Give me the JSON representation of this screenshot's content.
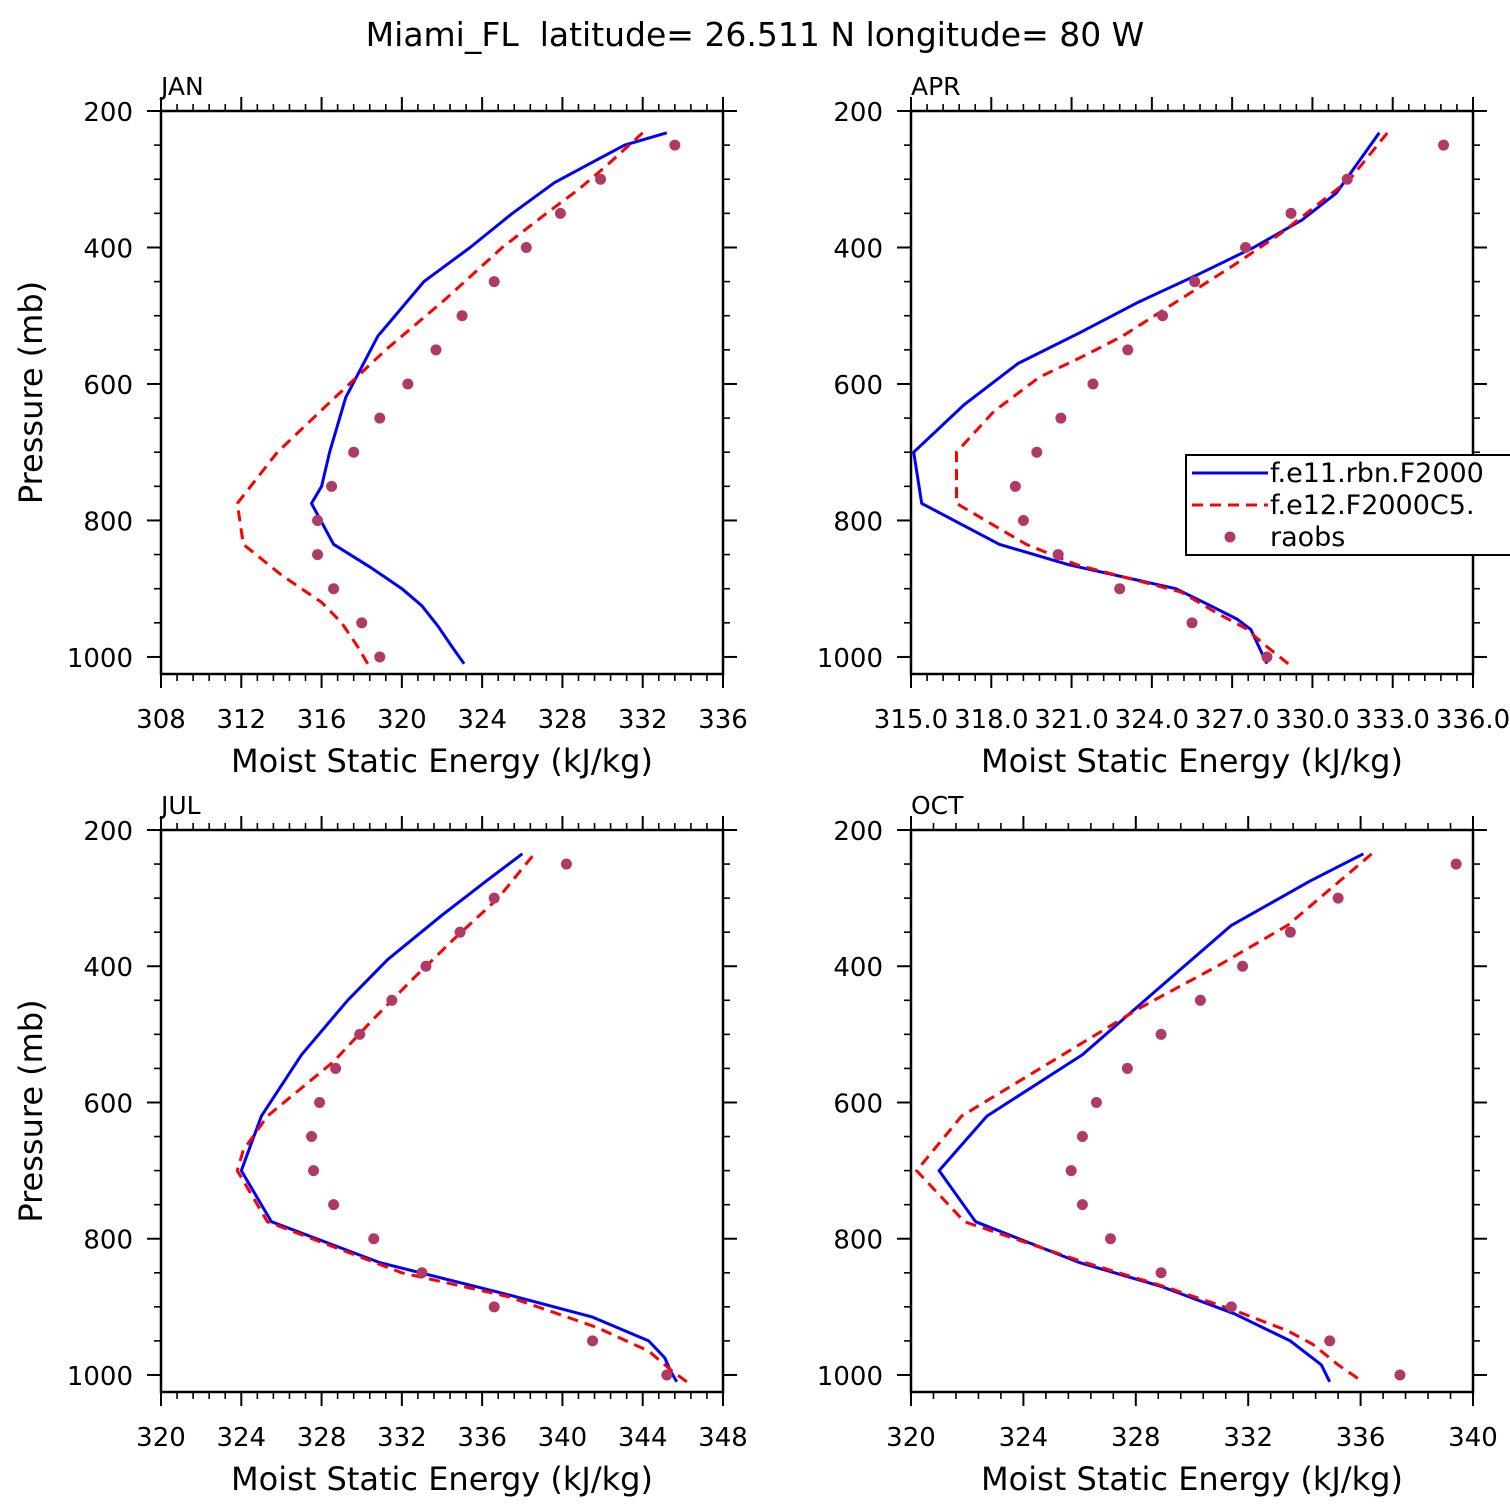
{
  "figure": {
    "title": "Miami_FL  latitude= 26.511 N longitude= 80 W"
  },
  "legend": {
    "placement": "right, inside APR panel (clipped)",
    "entries": [
      {
        "label": "f.e11.rbn.F2000",
        "style": "solid",
        "color": "#0000ff"
      },
      {
        "label": "f.e12.F2000C5.",
        "style": "dashed",
        "color": "#ff0000"
      },
      {
        "label": "raobs",
        "style": "dots",
        "color": "#b03a66"
      }
    ]
  },
  "chart_data": [
    {
      "type": "line",
      "panel_label": "JAN",
      "xlabel": "Moist Static Energy (kJ/kg)",
      "ylabel": "Pressure (mb)",
      "xlim": [
        308,
        336
      ],
      "ylim": [
        200,
        1025
      ],
      "y_inverted": true,
      "xticks": [
        "308",
        "312",
        "316",
        "320",
        "324",
        "328",
        "332",
        "336"
      ],
      "yticks": [
        "200",
        "400",
        "600",
        "800",
        "1000"
      ],
      "series": [
        {
          "name": "f.e11.rbn.F2000",
          "style": "solid",
          "color": "#0000ff",
          "x": [
            323.1,
            322.5,
            321.8,
            321.0,
            320.0,
            318.5,
            316.6,
            315.5,
            316.0,
            316.4,
            317.2,
            318.8,
            321.1,
            323.4,
            325.5,
            327.6,
            329.5,
            331.1,
            333.2
          ],
          "y": [
            1010,
            985,
            955,
            925,
            900,
            870,
            835,
            775,
            750,
            700,
            620,
            530,
            450,
            400,
            350,
            305,
            275,
            250,
            232
          ]
        },
        {
          "name": "f.e12.F2000C5.",
          "style": "dashed",
          "color": "#ff0000",
          "x": [
            318.3,
            317.8,
            317.0,
            316.0,
            315.0,
            314.0,
            312.1,
            311.8,
            313.8,
            316.3,
            319.2,
            322.2,
            325.0,
            327.2,
            328.8,
            330.2,
            332.0
          ],
          "y": [
            1010,
            985,
            950,
            920,
            900,
            880,
            835,
            775,
            700,
            630,
            550,
            475,
            400,
            350,
            315,
            280,
            232
          ]
        },
        {
          "name": "raobs",
          "style": "dots",
          "color": "#b03a66",
          "x": [
            318.9,
            318.0,
            316.6,
            315.8,
            315.8,
            316.5,
            317.6,
            318.9,
            320.3,
            321.7,
            323.0,
            324.6,
            326.2,
            327.9,
            329.9,
            333.6
          ],
          "y": [
            1000,
            950,
            900,
            850,
            800,
            750,
            700,
            650,
            600,
            550,
            500,
            450,
            400,
            350,
            300,
            250
          ]
        }
      ]
    },
    {
      "type": "line",
      "panel_label": "APR",
      "xlabel": "Moist Static Energy (kJ/kg)",
      "ylabel": "",
      "xlim": [
        315,
        336
      ],
      "ylim": [
        200,
        1025
      ],
      "y_inverted": true,
      "xticks": [
        "315.0",
        "318.0",
        "321.0",
        "324.0",
        "327.0",
        "330.0",
        "333.0",
        "336.0"
      ],
      "yticks": [
        "200",
        "400",
        "600",
        "800",
        "1000"
      ],
      "series": [
        {
          "name": "f.e11.rbn.F2000",
          "style": "solid",
          "color": "#0000ff",
          "x": [
            328.3,
            328.0,
            327.7,
            327.2,
            326.2,
            324.9,
            320.9,
            318.3,
            315.4,
            315.1,
            317.0,
            319.0,
            321.3,
            323.5,
            325.7,
            327.8,
            329.6,
            330.9,
            332.5
          ],
          "y": [
            1010,
            985,
            960,
            945,
            925,
            900,
            865,
            835,
            775,
            700,
            630,
            570,
            525,
            480,
            440,
            400,
            360,
            320,
            232
          ]
        },
        {
          "name": "f.e12.F2000C5.",
          "style": "dashed",
          "color": "#ff0000",
          "x": [
            329.1,
            328.3,
            327.5,
            326.4,
            325.1,
            321.2,
            319.3,
            316.7,
            316.7,
            318.1,
            319.8,
            321.4,
            322.9,
            324.9,
            326.9,
            328.8,
            330.1,
            331.4,
            332.8
          ],
          "y": [
            1010,
            985,
            958,
            935,
            905,
            865,
            835,
            775,
            700,
            640,
            590,
            560,
            530,
            480,
            430,
            380,
            340,
            300,
            232
          ]
        },
        {
          "name": "raobs",
          "style": "dots",
          "color": "#b03a66",
          "x": [
            328.3,
            325.5,
            322.8,
            320.5,
            319.2,
            318.9,
            319.7,
            320.6,
            321.8,
            323.1,
            324.4,
            325.6,
            327.5,
            329.2,
            331.3,
            334.9
          ],
          "y": [
            1000,
            950,
            900,
            850,
            800,
            750,
            700,
            650,
            600,
            550,
            500,
            450,
            400,
            350,
            300,
            250
          ]
        }
      ]
    },
    {
      "type": "line",
      "panel_label": "JUL",
      "xlabel": "Moist Static Energy (kJ/kg)",
      "ylabel": "Pressure (mb)",
      "xlim": [
        320,
        348
      ],
      "ylim": [
        200,
        1025
      ],
      "y_inverted": true,
      "xticks": [
        "320",
        "324",
        "328",
        "332",
        "336",
        "340",
        "344",
        "348"
      ],
      "yticks": [
        "200",
        "400",
        "600",
        "800",
        "1000"
      ],
      "series": [
        {
          "name": "f.e11.rbn.F2000",
          "style": "solid",
          "color": "#0000ff",
          "x": [
            345.7,
            345.4,
            345.1,
            344.3,
            341.5,
            337.0,
            330.9,
            325.5,
            324.0,
            325.0,
            327.0,
            329.3,
            331.3,
            334.0,
            336.2,
            338.0
          ],
          "y": [
            1010,
            995,
            975,
            950,
            915,
            880,
            835,
            775,
            700,
            620,
            530,
            450,
            390,
            325,
            275,
            235
          ]
        },
        {
          "name": "f.e12.F2000C5.",
          "style": "dashed",
          "color": "#ff0000",
          "x": [
            346.2,
            345.5,
            344.3,
            341.7,
            337.3,
            332.0,
            325.3,
            323.8,
            324.1,
            325.3,
            328.6,
            330.5,
            332.5,
            334.6,
            336.8,
            338.6
          ],
          "y": [
            1010,
            995,
            965,
            930,
            885,
            850,
            775,
            700,
            670,
            620,
            540,
            480,
            420,
            360,
            300,
            235
          ]
        },
        {
          "name": "raobs",
          "style": "dots",
          "color": "#b03a66",
          "x": [
            345.2,
            341.5,
            336.6,
            333.0,
            330.6,
            328.6,
            327.6,
            327.5,
            327.9,
            328.7,
            329.9,
            331.5,
            333.2,
            334.9,
            336.6,
            340.2
          ],
          "y": [
            1000,
            950,
            900,
            850,
            800,
            750,
            700,
            650,
            600,
            550,
            500,
            450,
            400,
            350,
            300,
            250
          ]
        }
      ]
    },
    {
      "type": "line",
      "panel_label": "OCT",
      "xlabel": "Moist Static Energy (kJ/kg)",
      "ylabel": "",
      "xlim": [
        320,
        340
      ],
      "ylim": [
        200,
        1025
      ],
      "y_inverted": true,
      "xticks": [
        "320",
        "324",
        "328",
        "332",
        "336",
        "340"
      ],
      "yticks": [
        "200",
        "400",
        "600",
        "800",
        "1000"
      ],
      "series": [
        {
          "name": "f.e11.rbn.F2000",
          "style": "solid",
          "color": "#0000ff",
          "x": [
            334.9,
            334.6,
            333.5,
            331.5,
            328.9,
            326.0,
            322.3,
            321.0,
            322.7,
            326.1,
            328.6,
            331.4,
            334.2,
            336.1
          ],
          "y": [
            1010,
            985,
            950,
            910,
            870,
            835,
            775,
            700,
            620,
            530,
            440,
            340,
            275,
            235
          ]
        },
        {
          "name": "f.e12.F2000C5.",
          "style": "dashed",
          "color": "#ff0000",
          "x": [
            335.9,
            335.2,
            334.3,
            333.4,
            331.5,
            329.0,
            326.2,
            321.9,
            320.2,
            321.8,
            325.4,
            328.2,
            330.9,
            333.4,
            336.4
          ],
          "y": [
            1005,
            985,
            955,
            935,
            905,
            870,
            835,
            775,
            700,
            620,
            530,
            460,
            400,
            340,
            235
          ]
        },
        {
          "name": "raobs",
          "style": "dots",
          "color": "#b03a66",
          "x": [
            337.4,
            334.9,
            331.4,
            328.9,
            327.1,
            326.1,
            325.7,
            326.1,
            326.6,
            327.7,
            328.9,
            330.3,
            331.8,
            333.5,
            335.2,
            339.4
          ],
          "y": [
            1000,
            950,
            900,
            850,
            800,
            750,
            700,
            650,
            600,
            550,
            500,
            450,
            400,
            350,
            300,
            250
          ]
        }
      ]
    }
  ]
}
